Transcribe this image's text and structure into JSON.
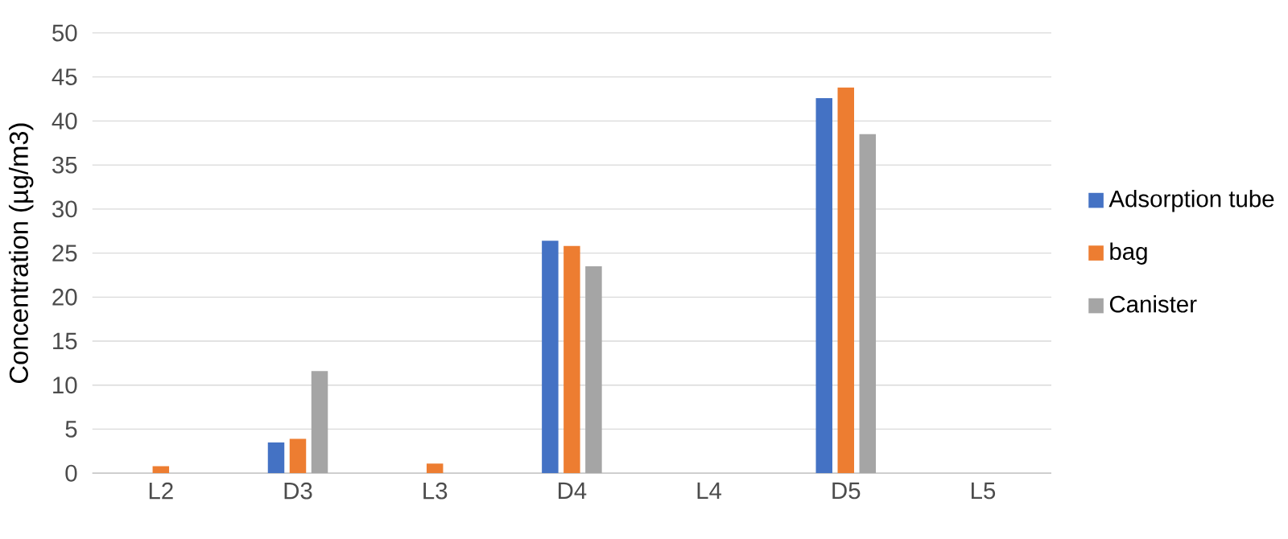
{
  "chart_data": {
    "type": "bar",
    "ylabel": "Concentration (µg/m3)",
    "categories": [
      "L2",
      "D3",
      "L3",
      "D4",
      "L4",
      "D5",
      "L5"
    ],
    "series": [
      {
        "name": "Adsorption tube",
        "color": "#4472c4",
        "values": [
          null,
          3.5,
          null,
          26.4,
          null,
          42.6,
          null
        ]
      },
      {
        "name": "bag",
        "color": "#ed7d31",
        "values": [
          0.8,
          3.9,
          1.1,
          25.8,
          null,
          43.8,
          null
        ]
      },
      {
        "name": "Canister",
        "color": "#a5a5a5",
        "values": [
          null,
          11.6,
          null,
          23.5,
          null,
          38.5,
          null
        ]
      }
    ],
    "ylim": [
      0,
      50
    ],
    "yticks": [
      0,
      5,
      10,
      15,
      20,
      25,
      30,
      35,
      40,
      45,
      50
    ],
    "grid": "y",
    "legend": "right"
  }
}
